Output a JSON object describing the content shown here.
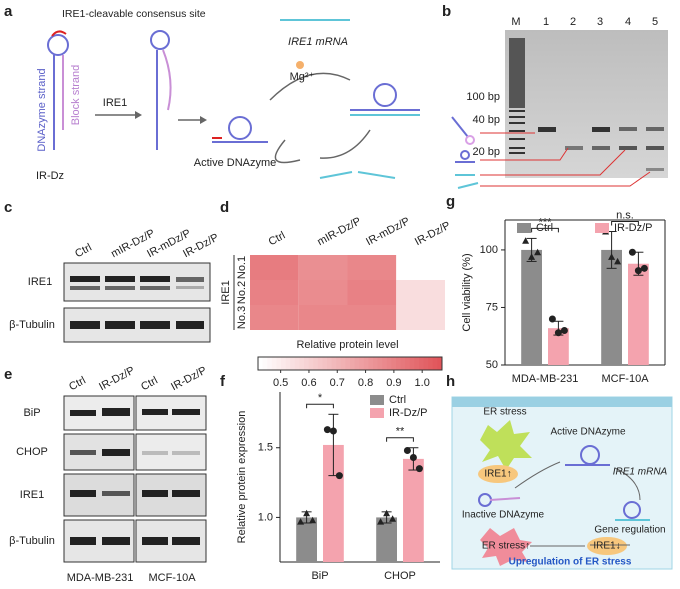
{
  "panel_labels": [
    "a",
    "b",
    "c",
    "d",
    "e",
    "f",
    "g",
    "h"
  ],
  "panel_a": {
    "site_label": "IRE1-cleavable consensus site",
    "dnazyme_strand": "DNAzyme strand",
    "block_strand": "Block strand",
    "ir_dz": "IR-Dz",
    "enzyme": "IRE1",
    "active": "Active DNAzyme",
    "mrna": "IRE1 mRNA",
    "mg": "Mg²⁺"
  },
  "panel_b": {
    "lanes": [
      "M",
      "1",
      "2",
      "3",
      "4",
      "5"
    ],
    "markers": [
      "100 bp",
      "40 bp",
      "20 bp"
    ]
  },
  "panel_c": {
    "lanes": [
      "Ctrl",
      "mIR-Dz/P",
      "IR-mDz/P",
      "IR-Dz/P"
    ],
    "rows": [
      "IRE1",
      "β-Tubulin"
    ]
  },
  "panel_e": {
    "lanes": [
      "Ctrl",
      "IR-Dz/P",
      "Ctrl",
      "IR-Dz/P"
    ],
    "rows": [
      "BiP",
      "CHOP",
      "IRE1",
      "β-Tubulin"
    ],
    "cells": [
      "MDA-MB-231",
      "MCF-10A"
    ]
  },
  "panel_h": {
    "er_stress": "ER stress",
    "ire1_up": "IRE1↑",
    "active": "Active DNAzyme",
    "mrna": "IRE1 mRNA",
    "inactive": "Inactive DNAzyme",
    "regulation": "Gene regulation",
    "ire1_down": "IRE1↓",
    "er_stress_up": "ER stress↑",
    "conclusion": "Upregulation of ER stress"
  },
  "chart_data": [
    {
      "type": "heatmap",
      "row_group": "IRE1",
      "rows": [
        "No.1",
        "No.2",
        "No.3"
      ],
      "columns": [
        "Ctrl",
        "mIR-Dz/P",
        "IR-mDz/P",
        "IR-Dz/P"
      ],
      "values": [
        [
          0.92,
          0.85,
          0.88,
          0.42
        ],
        [
          0.9,
          0.86,
          0.9,
          0.55
        ],
        [
          0.88,
          0.88,
          0.88,
          0.55
        ]
      ],
      "colorbar_label": "Relative protein level",
      "zlim": [
        0.42,
        1.07
      ],
      "zticks": [
        0.5,
        0.6,
        0.7,
        0.8,
        0.9,
        {
          "value": 1,
          "label": "1.0"
        }
      ],
      "colors": [
        "#ffffff",
        "#e0555a"
      ]
    },
    {
      "type": "bar",
      "ylabel": "Relative protein expression",
      "categories": [
        "BiP",
        "CHOP"
      ],
      "series": [
        {
          "name": "Ctrl",
          "color": "#8c8c8c",
          "values": [
            1.0,
            1.0
          ],
          "errors": [
            0.04,
            0.04
          ],
          "points": [
            [
              0.97,
              1.03,
              0.98
            ],
            [
              0.97,
              1.03,
              0.99
            ]
          ]
        },
        {
          "name": "IR-Dz/P",
          "color": "#f4a3ae",
          "values": [
            1.52,
            1.42
          ],
          "errors": [
            0.22,
            0.08
          ],
          "points": [
            [
              1.63,
              1.62,
              1.3
            ],
            [
              1.48,
              1.43,
              1.35
            ]
          ]
        }
      ],
      "ylim": [
        0.68,
        1.9
      ],
      "yticks": [
        {
          "value": 1,
          "label": "1.0"
        },
        {
          "value": 1.5,
          "label": "1.5"
        }
      ],
      "significance": [
        "*",
        "**"
      ],
      "legend": "upper right",
      "frame": false
    },
    {
      "type": "bar",
      "ylabel": "Cell viability (%)",
      "categories": [
        "MDA-MB-231",
        "MCF-10A"
      ],
      "series": [
        {
          "name": "Ctrl",
          "color": "#8c8c8c",
          "values": [
            100,
            100
          ],
          "errors": [
            5,
            8
          ],
          "points": [
            [
              104,
              97,
              99
            ],
            [
              108,
              97,
              95
            ]
          ]
        },
        {
          "name": "IR-Dz/P",
          "color": "#f4a3ae",
          "values": [
            66,
            94
          ],
          "errors": [
            3,
            5
          ],
          "points": [
            [
              70,
              64,
              65
            ],
            [
              99,
              91,
              92
            ]
          ]
        }
      ],
      "ylim": [
        50,
        113
      ],
      "yticks": [
        50,
        75,
        100
      ],
      "significance": [
        "***",
        "n.s."
      ],
      "legend": "upper center",
      "frame": true
    }
  ]
}
